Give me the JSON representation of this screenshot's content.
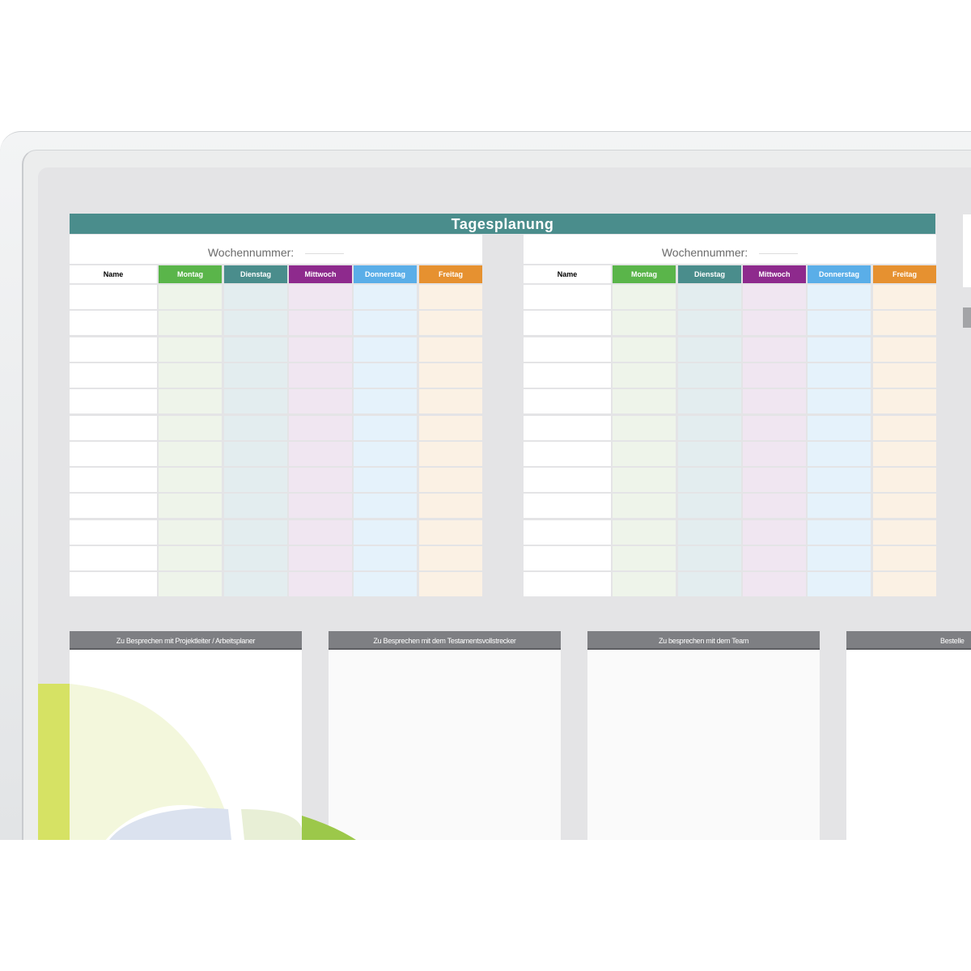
{
  "planner": {
    "title": "Tagesplanung",
    "week_label": "Wochennummer:",
    "tables": [
      {
        "headers": [
          "Name",
          "Montag",
          "Dienstag",
          "Mittwoch",
          "Donnerstag",
          "Freitag"
        ]
      },
      {
        "headers": [
          "Name",
          "Montag",
          "Dienstag",
          "Mittwoch",
          "Donnerstag",
          "Freitag"
        ]
      }
    ],
    "row_count": 12,
    "day_colors": [
      "#5ab54a",
      "#4a8d8c",
      "#8e2a8d",
      "#5aaee8",
      "#e69130"
    ],
    "cell_colors": [
      "#eef4ea",
      "#e3edef",
      "#f0e6f1",
      "#e5f2fb",
      "#fbf1e4"
    ],
    "panels": [
      {
        "title": "Zu Besprechen mit Projektleiter / Arbeitsplaner"
      },
      {
        "title": "Zu  Besprechen mit dem Testamentsvollstrecker"
      },
      {
        "title": "Zu besprechen mit dem Team"
      },
      {
        "title": "Bestelle"
      }
    ]
  }
}
